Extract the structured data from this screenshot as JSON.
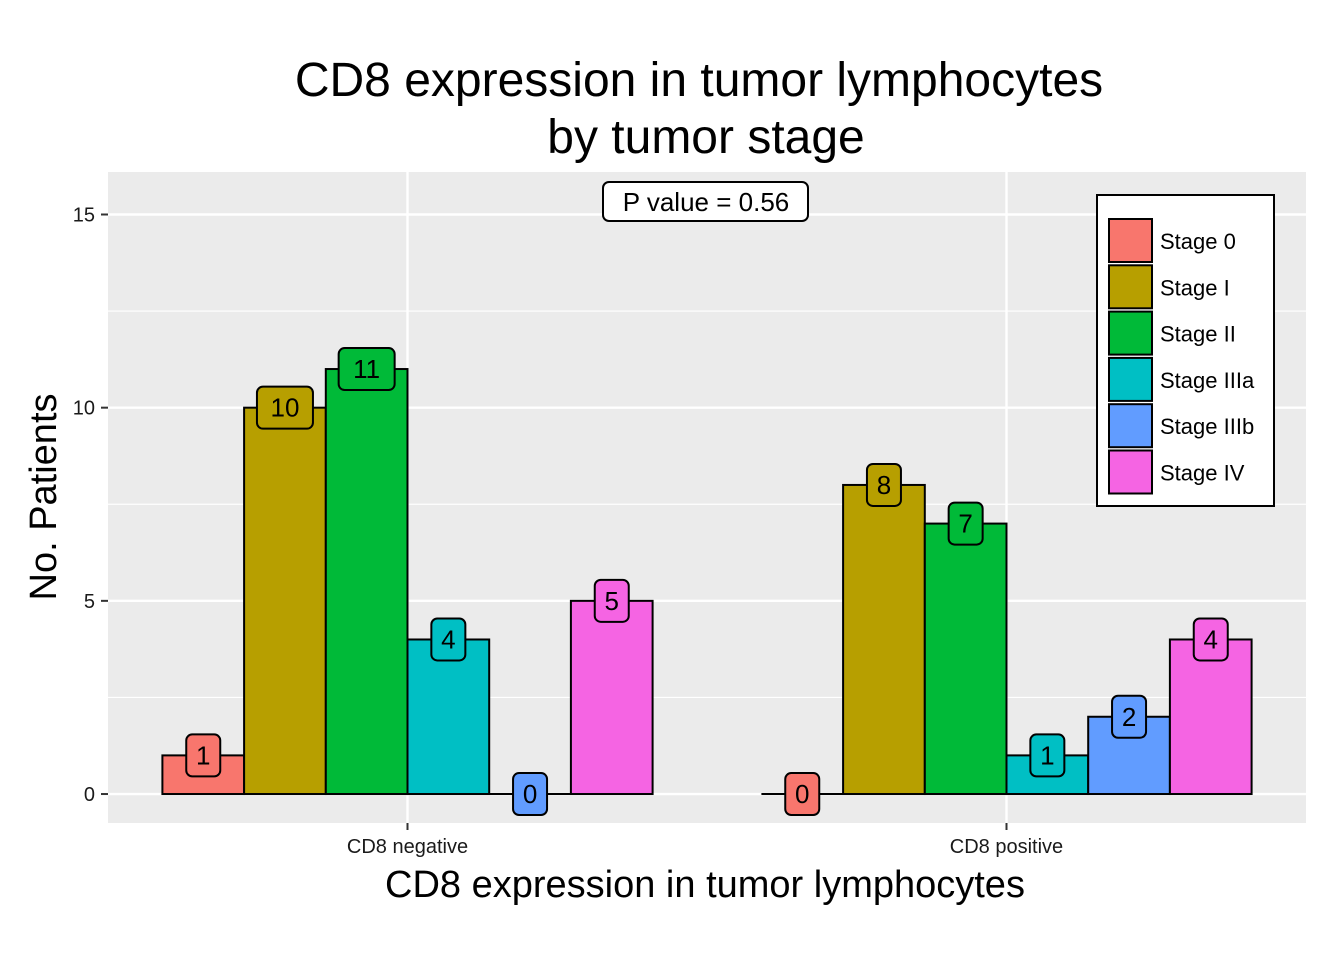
{
  "chart_data": {
    "type": "bar",
    "title": "CD8 expression in tumor lymphocytes\nby tumor stage",
    "title_lines": [
      "CD8 expression in tumor lymphocytes",
      "by tumor stage"
    ],
    "xlabel": "CD8 expression in tumor lymphocytes",
    "ylabel": "No. Patients",
    "categories": [
      "CD8 negative",
      "CD8 positive"
    ],
    "series": [
      {
        "name": "Stage 0",
        "values": [
          1,
          0
        ],
        "color": "#F8766D"
      },
      {
        "name": "Stage I",
        "values": [
          10,
          8
        ],
        "color": "#B79F00"
      },
      {
        "name": "Stage II",
        "values": [
          11,
          7
        ],
        "color": "#00BA38"
      },
      {
        "name": "Stage IIIa",
        "values": [
          4,
          1
        ],
        "color": "#00BFC4"
      },
      {
        "name": "Stage IIIb",
        "values": [
          0,
          2
        ],
        "color": "#619CFF"
      },
      {
        "name": "Stage IV",
        "values": [
          5,
          4
        ],
        "color": "#F564E3"
      }
    ],
    "ylim": [
      -0.75,
      16.1
    ],
    "yticks": [
      0,
      5,
      10,
      15
    ],
    "ytick_labels": [
      "0",
      "5",
      "10",
      "15"
    ],
    "annotation": "P value = 0.56",
    "legend_position": "top-right",
    "grid": true,
    "panel_background": "#EBEBEB",
    "grid_color": "#FFFFFF"
  }
}
